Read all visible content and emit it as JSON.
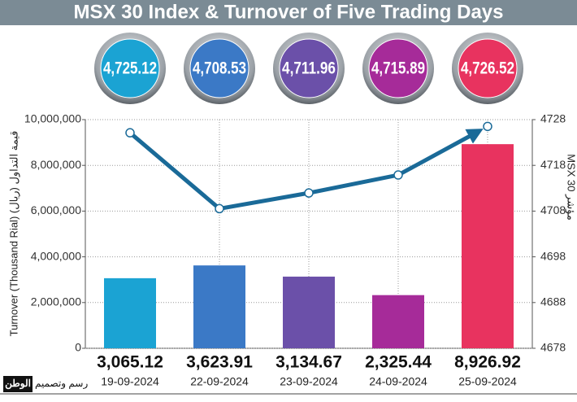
{
  "chart_data": {
    "type": "bar",
    "title": "MSX 30 Index & Turnover of Five Trading Days",
    "ylabel": "Turnover (Thousand Rial)  قيمة التداول (ريال)",
    "y2label": "MSX 30 مؤشر",
    "branding": [
      "الوطن",
      "رسم وتصميم"
    ],
    "categories": [
      "19-09-2024",
      "22-09-2024",
      "23-09-2024",
      "24-09-2024",
      "25-09-2024"
    ],
    "series": [
      {
        "type": "bar",
        "colors": [
          "#1ba3d3",
          "#3b79c6",
          "#6b50a9",
          "#a62b99",
          "#e8335f"
        ],
        "values": [
          3065120,
          3623910,
          3134670,
          2325440,
          8926920
        ],
        "value_labels": [
          "3,065.12",
          "3,623.91",
          "3,134.67",
          "2,325.44",
          "8,926.92"
        ]
      },
      {
        "type": "line",
        "axis": "y2",
        "color": "#1a6a98",
        "values": [
          4725.12,
          4708.53,
          4711.96,
          4715.89,
          4726.52
        ],
        "value_labels": [
          "4,725.12",
          "4,708.53",
          "4,711.96",
          "4,715.89",
          "4,726.52"
        ]
      }
    ],
    "ylim": [
      0,
      10000000
    ],
    "yticks": [
      0,
      {
        "value": 2000000,
        "label": "2,000,000"
      },
      {
        "value": 4000000,
        "label": "4,000,000"
      },
      {
        "value": 6000000,
        "label": "6,000,000"
      },
      {
        "value": 8000000,
        "label": "8,000,000"
      },
      {
        "value": 10000000,
        "label": "10,000,000"
      }
    ],
    "y2lim": [
      4678,
      4728
    ],
    "y2ticks": [
      4678,
      4688,
      4698,
      4708,
      4718,
      4728
    ],
    "grid": true
  }
}
